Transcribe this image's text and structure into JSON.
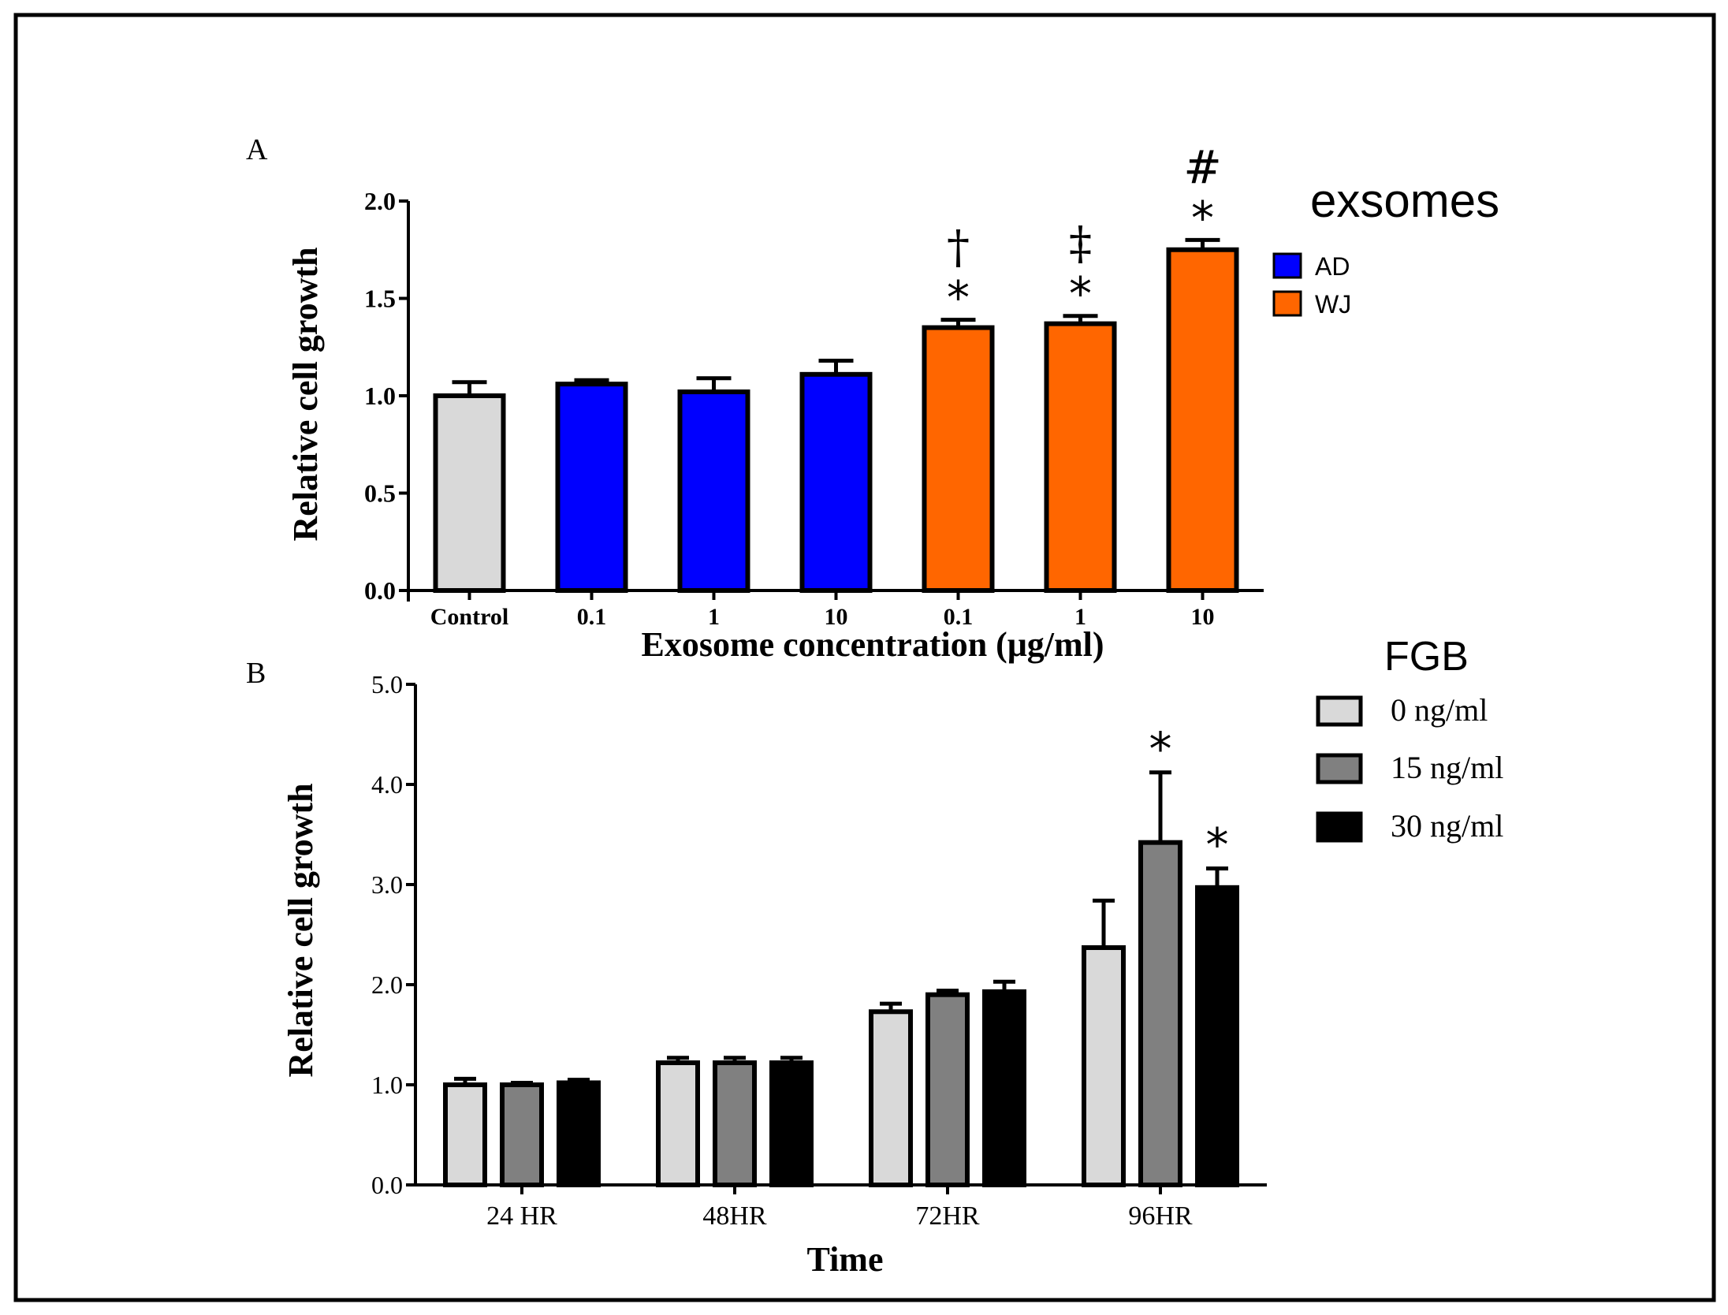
{
  "chart_data": [
    {
      "panel_label": "A",
      "type": "bar",
      "categories": [
        "Control",
        "0.1",
        "1",
        "10",
        "0.1",
        "1",
        "10"
      ],
      "values": [
        1.0,
        1.06,
        1.02,
        1.11,
        1.35,
        1.37,
        1.75
      ],
      "errors": [
        0.07,
        0.02,
        0.07,
        0.07,
        0.04,
        0.04,
        0.05
      ],
      "groups": [
        "",
        "AD",
        "AD",
        "AD",
        "WJ",
        "WJ",
        "WJ"
      ],
      "bar_colors": [
        "#d9d9d9",
        "#0000ff",
        "#0000ff",
        "#0000ff",
        "#ff6600",
        "#ff6600",
        "#ff6600"
      ],
      "annotations": [
        {
          "bar": 4,
          "marks": [
            "†",
            "*"
          ]
        },
        {
          "bar": 5,
          "marks": [
            "‡",
            "*"
          ]
        },
        {
          "bar": 6,
          "marks": [
            "#",
            "*"
          ]
        }
      ],
      "xlabel": "Exosome concentration (μg/ml)",
      "ylabel": "Relative cell growth",
      "ylim": [
        0,
        2.0
      ],
      "yticks": [
        "0.0",
        "0.5",
        "1.0",
        "1.5",
        "2.0"
      ],
      "legend": {
        "title": "exsomes",
        "placement": "right",
        "entries": [
          {
            "name": "AD",
            "color": "#0000ff"
          },
          {
            "name": "WJ",
            "color": "#ff6600"
          }
        ]
      },
      "grid": false
    },
    {
      "panel_label": "B",
      "type": "bar",
      "categories": [
        "24 HR",
        "48HR",
        "72HR",
        "96HR"
      ],
      "series": [
        {
          "name": "0 ng/ml",
          "color": "#d9d9d9",
          "values": [
            1.0,
            1.22,
            1.73,
            2.37
          ],
          "errors": [
            0.06,
            0.05,
            0.08,
            0.47
          ]
        },
        {
          "name": "15 ng/ml",
          "color": "#808080",
          "values": [
            1.0,
            1.22,
            1.9,
            3.42
          ],
          "errors": [
            0.02,
            0.05,
            0.04,
            0.7
          ]
        },
        {
          "name": "30 ng/ml",
          "color": "#000000",
          "values": [
            1.02,
            1.22,
            1.93,
            2.97
          ],
          "errors": [
            0.03,
            0.05,
            0.1,
            0.19
          ]
        }
      ],
      "annotations": [
        {
          "category": 3,
          "series": 1,
          "mark": "*"
        },
        {
          "category": 3,
          "series": 2,
          "mark": "*"
        }
      ],
      "xlabel": "Time",
      "ylabel": "Relative cell growth",
      "ylim": [
        0,
        5.0
      ],
      "yticks": [
        "0.0",
        "1.0",
        "2.0",
        "3.0",
        "4.0",
        "5.0"
      ],
      "legend": {
        "title": "FGB",
        "placement": "right"
      },
      "grid": false
    }
  ]
}
